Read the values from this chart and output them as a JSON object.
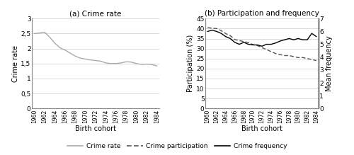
{
  "title_a": "(a) Crime rate",
  "title_b": "(b) Participation and frequency",
  "xlabel": "Birth cohort",
  "ylabel_a": "Crime rate",
  "ylabel_b": "Participation (%)",
  "ylabel_b2": "Mean frequency",
  "birth_cohorts": [
    1960,
    1961,
    1962,
    1963,
    1964,
    1965,
    1966,
    1967,
    1968,
    1969,
    1970,
    1971,
    1972,
    1973,
    1974,
    1975,
    1976,
    1977,
    1978,
    1979,
    1980,
    1981,
    1982,
    1983,
    1984
  ],
  "crime_rate": [
    2.5,
    2.52,
    2.55,
    2.38,
    2.18,
    2.03,
    1.95,
    1.85,
    1.75,
    1.68,
    1.65,
    1.62,
    1.6,
    1.58,
    1.52,
    1.5,
    1.5,
    1.52,
    1.56,
    1.55,
    1.5,
    1.47,
    1.48,
    1.47,
    1.42
  ],
  "crime_participation_pct": [
    40.5,
    40.2,
    40.0,
    39.0,
    37.5,
    36.5,
    34.5,
    34.0,
    33.5,
    33.0,
    32.0,
    31.5,
    30.5,
    29.5,
    28.5,
    27.5,
    27.0,
    26.5,
    26.5,
    26.0,
    25.5,
    25.5,
    25.0,
    24.5,
    24.0
  ],
  "crime_frequency": [
    6.0,
    6.1,
    6.0,
    5.85,
    5.6,
    5.45,
    5.15,
    5.0,
    5.15,
    5.0,
    4.95,
    4.95,
    4.85,
    5.0,
    5.0,
    5.1,
    5.25,
    5.35,
    5.45,
    5.35,
    5.45,
    5.35,
    5.35,
    5.85,
    5.6
  ],
  "crime_rate_color": "#aaaaaa",
  "participation_color": "#555555",
  "frequency_color": "#000000",
  "ylim_a": [
    0,
    3
  ],
  "yticks_a": [
    0,
    0.5,
    1,
    1.5,
    2,
    2.5,
    3
  ],
  "ytick_labels_a": [
    "0",
    "0,5",
    "1",
    "1,5",
    "2",
    "2,5",
    "3"
  ],
  "ylim_b": [
    0,
    45
  ],
  "yticks_b": [
    0,
    5,
    10,
    15,
    20,
    25,
    30,
    35,
    40,
    45
  ],
  "ylim_b2": [
    0,
    7
  ],
  "yticks_b2": [
    0,
    1,
    2,
    3,
    4,
    5,
    6,
    7
  ],
  "xticks": [
    1960,
    1962,
    1964,
    1966,
    1968,
    1970,
    1972,
    1974,
    1976,
    1978,
    1980,
    1982,
    1984
  ],
  "legend_labels": [
    "Crime rate",
    "Crime participation",
    "Crime frequency"
  ]
}
